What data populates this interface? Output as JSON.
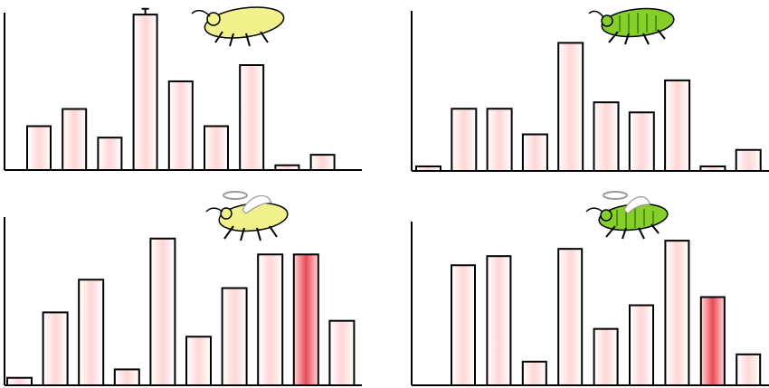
{
  "chart_data": [
    {
      "type": "bar",
      "panel": "top-left",
      "insect_icon": "yellow-aphid-icon",
      "insect_color": "#f2f28c",
      "ylim": [
        0,
        165
      ],
      "values": [
        46,
        64,
        34,
        163,
        93,
        46,
        110,
        5,
        16
      ],
      "highlight": [],
      "error_bar_index": 3,
      "error_bar_value": 169,
      "xlabel": "",
      "ylabel": ""
    },
    {
      "type": "bar",
      "panel": "top-right",
      "insect_icon": "green-aphid-icon",
      "insect_color": "#86cf2b",
      "ylim": [
        0,
        175
      ],
      "values": [
        5,
        68,
        68,
        40,
        140,
        75,
        64,
        99,
        5,
        23
      ],
      "highlight": [],
      "xlabel": "",
      "ylabel": ""
    },
    {
      "type": "bar",
      "panel": "bottom-left",
      "insect_icon": "yellow-aphid-winged-icon",
      "insect_color": "#f2f28c",
      "ylim": [
        0,
        180
      ],
      "values": [
        8,
        78,
        113,
        17,
        157,
        52,
        104,
        140,
        140,
        69
      ],
      "highlight": [
        8
      ],
      "xlabel": "",
      "ylabel": ""
    },
    {
      "type": "bar",
      "panel": "bottom-right",
      "insect_icon": "green-aphid-winged-icon",
      "insect_color": "#86cf2b",
      "ylim": [
        0,
        180
      ],
      "values": [
        132,
        142,
        26,
        150,
        62,
        88,
        159,
        97,
        34
      ],
      "highlight": [
        7
      ],
      "xlabel": "",
      "ylabel": ""
    }
  ],
  "colors": {
    "bar_light": "#ffd6d6",
    "bar_highlight": "#e84a55",
    "axis": "#000000",
    "yellow_aphid": "#f2f28c",
    "green_aphid": "#86cf2b"
  }
}
